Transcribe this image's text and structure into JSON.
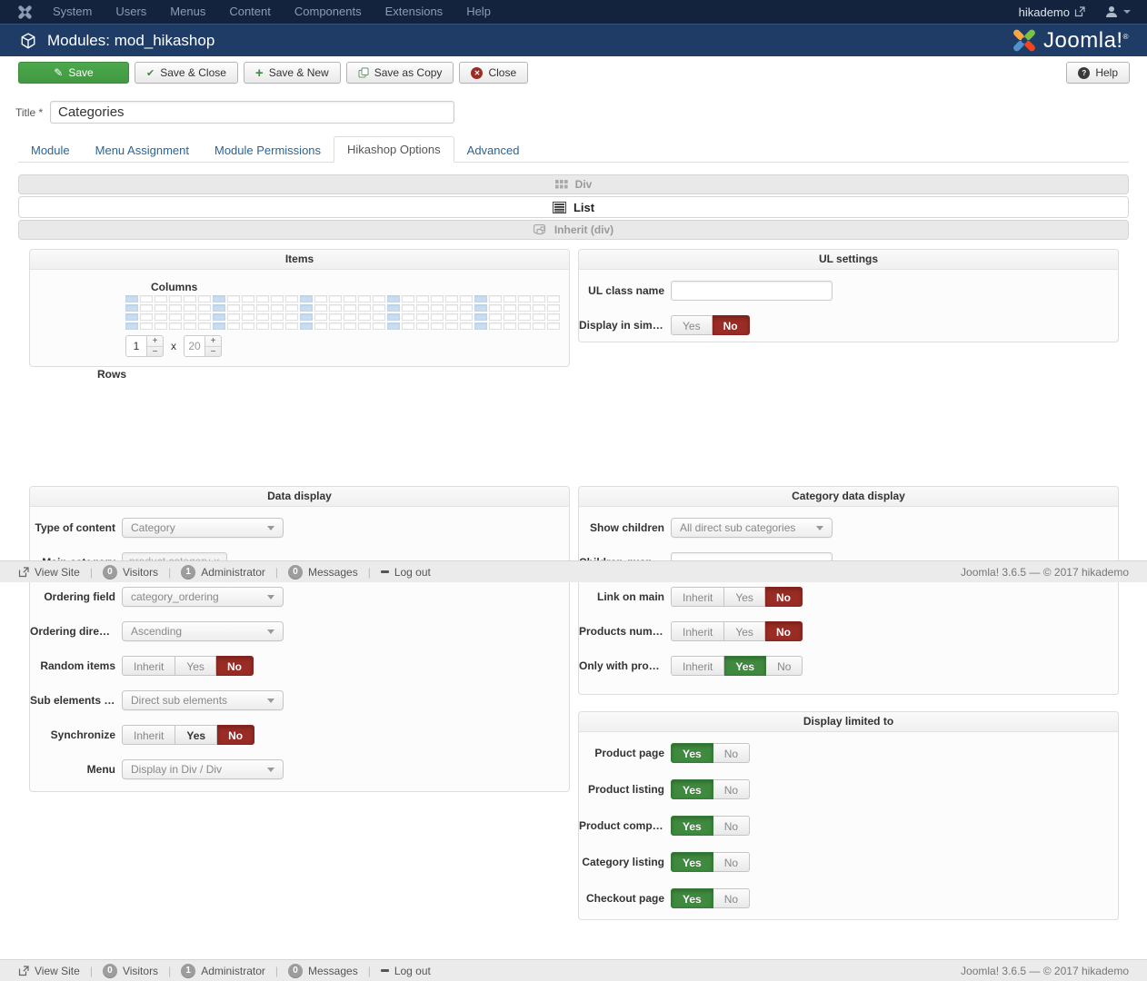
{
  "topbar": {
    "items": [
      "System",
      "Users",
      "Menus",
      "Content",
      "Components",
      "Extensions",
      "Help"
    ],
    "user": "hikademo"
  },
  "titlebar": {
    "title": "Modules: mod_hikashop",
    "brand_text": "Joomla!",
    "brand_reg": "®"
  },
  "toolbar": {
    "save": "Save",
    "save_close": "Save & Close",
    "save_new": "Save & New",
    "save_copy": "Save as Copy",
    "close": "Close",
    "help": "Help"
  },
  "icons": {
    "pencil": "✎",
    "check": "✔",
    "plus": "+",
    "close_x": "✕",
    "question": "?"
  },
  "form": {
    "title_label": "Title *",
    "title_value": "Categories"
  },
  "tabs": {
    "items": [
      {
        "label": "Module",
        "active": false
      },
      {
        "label": "Menu Assignment",
        "active": false
      },
      {
        "label": "Module Permissions",
        "active": false
      },
      {
        "label": "Hikashop Options",
        "active": true
      },
      {
        "label": "Advanced",
        "active": false
      }
    ]
  },
  "modes": [
    {
      "label": "Div",
      "active": false
    },
    {
      "label": "List",
      "active": true
    },
    {
      "label": "Inherit (div)",
      "active": false
    }
  ],
  "panels": {
    "items": {
      "title": "Items",
      "columns_label": "Columns",
      "rows_label": "Rows",
      "grid": {
        "rows": 4,
        "cols": 30,
        "highlight_step": 6
      },
      "rows_value": "1",
      "times_label": "x",
      "cols_value": "20",
      "spin_plus": "+",
      "spin_minus": "−"
    },
    "ul_settings": {
      "title": "UL settings",
      "fields": [
        {
          "label": "UL class name",
          "type": "input",
          "value": ""
        },
        {
          "label": "Display in simple…",
          "type": "toggle",
          "options": [
            "Yes",
            "No"
          ],
          "selected": "No",
          "color": "red"
        }
      ]
    },
    "data_display": {
      "title": "Data display",
      "fields": [
        {
          "label": "Type of content",
          "type": "select",
          "value": "Category"
        },
        {
          "label": "Main category",
          "type": "tag",
          "value": "product category ×"
        },
        {
          "label": "Ordering field",
          "type": "select",
          "value": "category_ordering"
        },
        {
          "label": "Ordering direction",
          "type": "select",
          "value": "Ascending"
        },
        {
          "label": "Random items",
          "type": "toggle",
          "options": [
            "Inherit",
            "Yes",
            "No"
          ],
          "selected": "No",
          "color": "red"
        },
        {
          "label": "Sub elements filter",
          "type": "select",
          "value": "Direct sub elements"
        },
        {
          "label": "Synchronize",
          "type": "toggle",
          "options": [
            "Inherit",
            "Yes",
            "No"
          ],
          "selected": "No",
          "color": "red",
          "bold_option": "Yes"
        },
        {
          "label": "Menu",
          "type": "select",
          "value": "Display in Div / Div"
        }
      ]
    },
    "category_data_display": {
      "title": "Category data display",
      "fields": [
        {
          "label": "Show children",
          "type": "select",
          "value": "All direct sub categories"
        },
        {
          "label": "Children quantity",
          "type": "input",
          "value": ""
        },
        {
          "label": "Link on main",
          "type": "toggle",
          "options": [
            "Inherit",
            "Yes",
            "No"
          ],
          "selected": "No",
          "color": "red"
        },
        {
          "label": "Products number",
          "type": "toggle",
          "options": [
            "Inherit",
            "Yes",
            "No"
          ],
          "selected": "No",
          "color": "red"
        },
        {
          "label": "Only with products",
          "type": "toggle",
          "options": [
            "Inherit",
            "Yes",
            "No"
          ],
          "selected": "Yes",
          "color": "green"
        }
      ]
    },
    "display_limited_to": {
      "title": "Display limited to",
      "fields": [
        {
          "label": "Product page",
          "type": "toggle",
          "options": [
            "Yes",
            "No"
          ],
          "selected": "Yes",
          "color": "green"
        },
        {
          "label": "Product listing",
          "type": "toggle",
          "options": [
            "Yes",
            "No"
          ],
          "selected": "Yes",
          "color": "green"
        },
        {
          "label": "Product compare",
          "type": "toggle",
          "options": [
            "Yes",
            "No"
          ],
          "selected": "Yes",
          "color": "green"
        },
        {
          "label": "Category listing",
          "type": "toggle",
          "options": [
            "Yes",
            "No"
          ],
          "selected": "Yes",
          "color": "green"
        },
        {
          "label": "Checkout page",
          "type": "toggle",
          "options": [
            "Yes",
            "No"
          ],
          "selected": "Yes",
          "color": "green"
        }
      ]
    }
  },
  "statusbar": {
    "view_site": "View Site",
    "visitors": {
      "count": "0",
      "label": "Visitors"
    },
    "administrator": {
      "count": "1",
      "label": "Administrator"
    },
    "messages": {
      "count": "0",
      "label": "Messages"
    },
    "logout": "Log out",
    "version": "Joomla! 3.6.5",
    "copyright": "© 2017 hikademo"
  },
  "colors": {
    "topbar_bg": "#13233d",
    "titlebar_bg": "#1e3c66",
    "accent_green": "#419941",
    "toggle_red": "#9a2b25",
    "toggle_green": "#3f8a3f",
    "link_blue": "#2a6496",
    "grid_highlight": "#c9ddf2"
  }
}
